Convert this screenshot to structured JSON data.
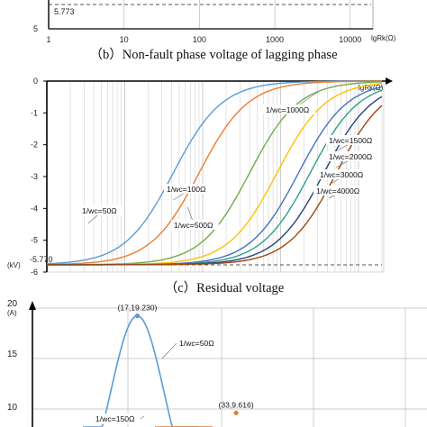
{
  "chart_data": [
    {
      "type": "line",
      "caption": "",
      "x_scale": "log",
      "x_ticks": [
        "1",
        "10",
        "100",
        "1000",
        "10000"
      ],
      "x_unit": "lgRk(Ω)",
      "y_ticks": [
        "5"
      ],
      "annotation": "5.773",
      "reference_line": 5.773,
      "series_color": "#e07b2a"
    },
    {
      "type": "line",
      "caption": "（b）Non-fault phase voltage of lagging phase",
      "title": "（c）Residual voltage",
      "x_scale": "log",
      "x_unit": "lgRk(Ω)",
      "y_unit": "(kV)",
      "y_ticks": [
        "0",
        "-1",
        "-2",
        "-3",
        "-4",
        "-5",
        "-6"
      ],
      "ylim": [
        -6,
        0
      ],
      "xlim": [
        1,
        20000
      ],
      "annotation": "-5.770",
      "y_start": -5.77,
      "series": [
        {
          "name": "1/wc=50Ω",
          "color": "#5b9bd5",
          "x50": 42
        },
        {
          "name": "1/wc=100Ω",
          "color": "#ed7d31",
          "x50": 90
        },
        {
          "name": "1/wc=500Ω",
          "color": "#70ad47",
          "x50": 400
        },
        {
          "name": "1/wc=1000Ω",
          "color": "#ffc000",
          "x50": 900
        },
        {
          "name": "1/wc=1500Ω",
          "color": "#4472c4",
          "x50": 1700
        },
        {
          "name": "1/wc=2000Ω",
          "color": "#2e9e8c",
          "x50": 2400
        },
        {
          "name": "1/wc=3000Ω",
          "color": "#264478",
          "x50": 3600
        },
        {
          "name": "1/wc=4000Ω",
          "color": "#9e480e",
          "x50": 5200
        }
      ]
    },
    {
      "type": "line",
      "y_unit": "(A)",
      "y_ticks": [
        "20",
        "15",
        "10"
      ],
      "y_top": 20,
      "series": [
        {
          "name": "1/wc=50Ω",
          "color": "#5b9bd5",
          "peak_label": "(17,19.230)",
          "peak_x": 17,
          "peak_y": 19.23
        },
        {
          "name": "1/wc=150Ω",
          "color": "#ed7d31",
          "peak_label": "(33,9.616)",
          "peak_x": 33,
          "peak_y": 9.616
        }
      ]
    }
  ]
}
